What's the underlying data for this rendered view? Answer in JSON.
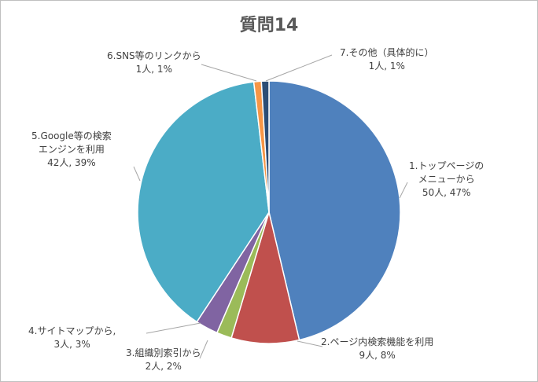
{
  "chart_data": {
    "type": "pie",
    "title": "質問14",
    "slices": [
      {
        "label_line1": "1.トップページの",
        "label_line2": "メニューから",
        "count_pct": "50人, 47%",
        "value": 50,
        "percent": 47,
        "color": "#4f81bd"
      },
      {
        "label_line1": "2.ページ内検索機能を利用",
        "label_line2": "",
        "count_pct": "9人, 8%",
        "value": 9,
        "percent": 8,
        "color": "#c0504d"
      },
      {
        "label_line1": "3.組織別索引から",
        "label_line2": "",
        "count_pct": "2人, 2%",
        "value": 2,
        "percent": 2,
        "color": "#9bbb59"
      },
      {
        "label_line1": "4.サイトマップから,",
        "label_line2": "",
        "count_pct": "3人, 3%",
        "value": 3,
        "percent": 3,
        "color": "#8064a2"
      },
      {
        "label_line1": "5.Google等の検索",
        "label_line2": "エンジンを利用",
        "count_pct": "42人, 39%",
        "value": 42,
        "percent": 39,
        "color": "#4bacc6"
      },
      {
        "label_line1": "6.SNS等のリンクから",
        "label_line2": "",
        "count_pct": "1人, 1%",
        "value": 1,
        "percent": 1,
        "color": "#f79646"
      },
      {
        "label_line1": "7.その他（具体的に）",
        "label_line2": "",
        "count_pct": "1人, 1%",
        "value": 1,
        "percent": 1,
        "color": "#2c4d75"
      }
    ]
  }
}
